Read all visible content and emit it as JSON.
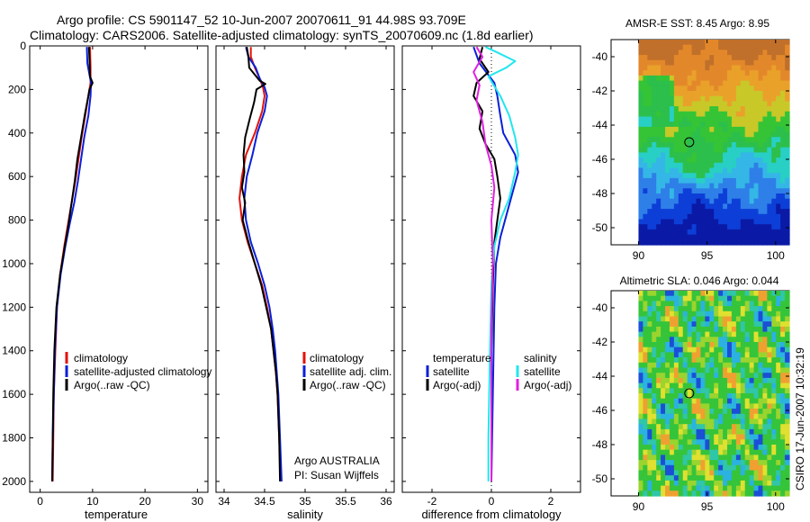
{
  "header": {
    "line1": "Argo profile: CS 5901147_52 10-Jun-2007 20070611_91 44.98S 93.709E",
    "line2": "Climatology: CARS2006. Satellite-adjusted climatology: synTS_20070609.nc (1.8d earlier)"
  },
  "side_label": "CSIRO 17-Jun-2007 10:32:19",
  "colors": {
    "red": "#e3120b",
    "blue": "#0a1fd8",
    "black": "#000000",
    "cyan": "#22e6ee",
    "magenta": "#e020e0"
  },
  "chart_data": [
    {
      "type": "line",
      "id": "temperature",
      "xlabel": "temperature",
      "xlim": [
        -2,
        32
      ],
      "ylim": [
        2050,
        0
      ],
      "xticks": [
        0,
        10,
        20,
        30
      ],
      "yticks": [
        0,
        200,
        400,
        600,
        800,
        1000,
        1200,
        1400,
        1600,
        1800,
        2000
      ],
      "legend": [
        "climatology",
        "satellite-adjusted climatology",
        "Argo(..raw -QC)"
      ],
      "series": [
        {
          "name": "climatology",
          "color": "red",
          "points": [
            [
              9.5,
              5
            ],
            [
              9.6,
              100
            ],
            [
              9.6,
              170
            ],
            [
              9.2,
              230
            ],
            [
              8.6,
              320
            ],
            [
              7.9,
              420
            ],
            [
              7.3,
              520
            ],
            [
              6.7,
              620
            ],
            [
              6.0,
              720
            ],
            [
              5.3,
              820
            ],
            [
              4.6,
              920
            ],
            [
              3.8,
              1050
            ],
            [
              3.2,
              1200
            ],
            [
              2.9,
              1400
            ],
            [
              2.6,
              1600
            ],
            [
              2.5,
              1800
            ],
            [
              2.4,
              2000
            ]
          ]
        },
        {
          "name": "satellite-adjusted climatology",
          "color": "blue",
          "points": [
            [
              8.9,
              5
            ],
            [
              9.0,
              80
            ],
            [
              9.7,
              170
            ],
            [
              9.6,
              230
            ],
            [
              9.2,
              320
            ],
            [
              8.4,
              420
            ],
            [
              7.8,
              520
            ],
            [
              7.2,
              620
            ],
            [
              6.5,
              720
            ],
            [
              5.6,
              820
            ],
            [
              4.8,
              920
            ],
            [
              3.9,
              1050
            ],
            [
              3.2,
              1200
            ],
            [
              2.8,
              1400
            ],
            [
              2.6,
              1600
            ],
            [
              2.4,
              1800
            ],
            [
              2.3,
              2000
            ]
          ]
        },
        {
          "name": "Argo(..raw -QC)",
          "color": "black",
          "points": [
            [
              9.3,
              5
            ],
            [
              9.4,
              60
            ],
            [
              9.5,
              140
            ],
            [
              10.0,
              170
            ],
            [
              9.4,
              200
            ],
            [
              9.2,
              230
            ],
            [
              8.5,
              320
            ],
            [
              7.8,
              420
            ],
            [
              7.1,
              520
            ],
            [
              6.6,
              620
            ],
            [
              6.0,
              720
            ],
            [
              5.4,
              820
            ],
            [
              4.7,
              920
            ],
            [
              3.8,
              1050
            ],
            [
              3.1,
              1200
            ],
            [
              2.7,
              1400
            ],
            [
              2.5,
              1600
            ],
            [
              2.4,
              1800
            ],
            [
              2.3,
              2000
            ]
          ]
        }
      ]
    },
    {
      "type": "line",
      "id": "salinity",
      "xlabel": "salinity",
      "xlim": [
        33.9,
        36.1
      ],
      "ylim": [
        2050,
        0
      ],
      "xticks": [
        34,
        34.5,
        35,
        35.5,
        36
      ],
      "legend": [
        "climatology",
        "satellite adj. clim.",
        "Argo(..raw -QC)"
      ],
      "notes": [
        "Argo AUSTRALIA",
        "PI: Susan Wijffels"
      ],
      "series": [
        {
          "name": "climatology",
          "color": "red",
          "points": [
            [
              34.33,
              5
            ],
            [
              34.33,
              50
            ],
            [
              34.38,
              100
            ],
            [
              34.44,
              150
            ],
            [
              34.48,
              190
            ],
            [
              34.5,
              230
            ],
            [
              34.47,
              300
            ],
            [
              34.38,
              400
            ],
            [
              34.27,
              500
            ],
            [
              34.22,
              600
            ],
            [
              34.19,
              700
            ],
            [
              34.22,
              800
            ],
            [
              34.29,
              900
            ],
            [
              34.38,
              1000
            ],
            [
              34.47,
              1100
            ],
            [
              34.53,
              1200
            ],
            [
              34.58,
              1300
            ],
            [
              34.61,
              1400
            ],
            [
              34.64,
              1500
            ],
            [
              34.66,
              1600
            ],
            [
              34.68,
              1800
            ],
            [
              34.7,
              2000
            ]
          ]
        },
        {
          "name": "satellite adj. clim.",
          "color": "blue",
          "points": [
            [
              34.27,
              5
            ],
            [
              34.3,
              50
            ],
            [
              34.39,
              100
            ],
            [
              34.44,
              150
            ],
            [
              34.5,
              190
            ],
            [
              34.53,
              230
            ],
            [
              34.5,
              300
            ],
            [
              34.41,
              400
            ],
            [
              34.35,
              500
            ],
            [
              34.28,
              600
            ],
            [
              34.25,
              700
            ],
            [
              34.27,
              800
            ],
            [
              34.33,
              900
            ],
            [
              34.42,
              1000
            ],
            [
              34.5,
              1100
            ],
            [
              34.56,
              1200
            ],
            [
              34.6,
              1300
            ],
            [
              34.63,
              1400
            ],
            [
              34.65,
              1500
            ],
            [
              34.67,
              1600
            ],
            [
              34.69,
              1800
            ],
            [
              34.71,
              2000
            ]
          ]
        },
        {
          "name": "Argo(..raw -QC)",
          "color": "black",
          "points": [
            [
              34.28,
              5
            ],
            [
              34.3,
              50
            ],
            [
              34.31,
              100
            ],
            [
              34.44,
              160
            ],
            [
              34.51,
              175
            ],
            [
              34.4,
              200
            ],
            [
              34.37,
              260
            ],
            [
              34.32,
              330
            ],
            [
              34.26,
              420
            ],
            [
              34.24,
              500
            ],
            [
              34.25,
              580
            ],
            [
              34.22,
              650
            ],
            [
              34.26,
              720
            ],
            [
              34.23,
              800
            ],
            [
              34.3,
              900
            ],
            [
              34.38,
              1000
            ],
            [
              34.46,
              1100
            ],
            [
              34.52,
              1200
            ],
            [
              34.58,
              1300
            ],
            [
              34.61,
              1400
            ],
            [
              34.64,
              1500
            ],
            [
              34.66,
              1600
            ],
            [
              34.68,
              1800
            ],
            [
              34.69,
              2000
            ]
          ]
        }
      ]
    },
    {
      "type": "line",
      "id": "difference",
      "xlabel": "difference from climatology",
      "xlim": [
        -3,
        3
      ],
      "ylim": [
        2050,
        0
      ],
      "xticks": [
        -2,
        0,
        2
      ],
      "legend": {
        "temperature_title": "temperature",
        "salinity_title": "salinity",
        "items": [
          "satellite",
          "Argo(-adj)",
          "satellite",
          "Argo(-adj)"
        ]
      },
      "series": [
        {
          "name": "satellite",
          "group": "temperature",
          "color": "blue",
          "points": [
            [
              -0.6,
              5
            ],
            [
              -0.4,
              80
            ],
            [
              0.1,
              170
            ],
            [
              0.2,
              230
            ],
            [
              0.3,
              320
            ],
            [
              0.4,
              400
            ],
            [
              0.8,
              500
            ],
            [
              0.9,
              580
            ],
            [
              0.7,
              680
            ],
            [
              0.5,
              780
            ],
            [
              0.3,
              880
            ],
            [
              0.15,
              1000
            ],
            [
              0.1,
              1200
            ],
            [
              0.05,
              1600
            ],
            [
              0.0,
              2000
            ]
          ]
        },
        {
          "name": "Argo(-adj)",
          "group": "temperature",
          "color": "black",
          "points": [
            [
              -0.3,
              5
            ],
            [
              -0.4,
              60
            ],
            [
              -0.1,
              120
            ],
            [
              -0.5,
              170
            ],
            [
              -0.6,
              230
            ],
            [
              -0.3,
              300
            ],
            [
              -0.4,
              380
            ],
            [
              -0.2,
              450
            ],
            [
              0.1,
              520
            ],
            [
              0.2,
              600
            ],
            [
              0.3,
              700
            ],
            [
              0.2,
              800
            ],
            [
              0.1,
              900
            ],
            [
              0.05,
              1100
            ],
            [
              0.0,
              1400
            ],
            [
              0.0,
              2000
            ]
          ]
        },
        {
          "name": "satellite",
          "group": "salinity",
          "color": "cyan",
          "points": [
            [
              -0.2,
              5
            ],
            [
              0.2,
              30
            ],
            [
              0.8,
              70
            ],
            [
              0.5,
              100
            ],
            [
              -0.1,
              140
            ],
            [
              0.3,
              230
            ],
            [
              0.6,
              320
            ],
            [
              0.8,
              420
            ],
            [
              0.9,
              500
            ],
            [
              0.8,
              580
            ],
            [
              0.6,
              700
            ],
            [
              0.3,
              800
            ],
            [
              0.1,
              920
            ],
            [
              0.0,
              1100
            ],
            [
              -0.05,
              1400
            ],
            [
              -0.1,
              1800
            ],
            [
              -0.1,
              2000
            ]
          ]
        },
        {
          "name": "Argo(-adj)",
          "group": "salinity",
          "color": "magenta",
          "points": [
            [
              -0.5,
              5
            ],
            [
              -0.3,
              50
            ],
            [
              -0.6,
              120
            ],
            [
              -0.4,
              180
            ],
            [
              -0.5,
              250
            ],
            [
              -0.3,
              350
            ],
            [
              -0.2,
              450
            ],
            [
              0.0,
              550
            ],
            [
              0.1,
              650
            ],
            [
              0.0,
              800
            ],
            [
              0.05,
              1000
            ],
            [
              0.0,
              1300
            ],
            [
              0.0,
              2000
            ]
          ]
        }
      ]
    },
    {
      "type": "heatmap",
      "id": "sst-map",
      "title": "AMSR-E SST: 8.45 Argo: 8.95",
      "xlim": [
        88,
        101
      ],
      "ylim": [
        -51,
        -39
      ],
      "xticks": [
        90,
        95,
        100
      ],
      "yticks": [
        -50,
        -48,
        -46,
        -44,
        -42,
        -40
      ],
      "data_extent": {
        "lon": [
          90,
          101
        ],
        "lat": [
          -51,
          -39
        ]
      },
      "argo_marker": {
        "lon": 93.7,
        "lat": -45.0
      }
    },
    {
      "type": "heatmap",
      "id": "sla-map",
      "title": "Altimetric SLA: 0.046 Argo: 0.044",
      "xlim": [
        88,
        101
      ],
      "ylim": [
        -51,
        -39
      ],
      "xticks": [
        90,
        95,
        100
      ],
      "yticks": [
        -50,
        -48,
        -46,
        -44,
        -42,
        -40
      ],
      "data_extent": {
        "lon": [
          90,
          101
        ],
        "lat": [
          -51,
          -39
        ]
      },
      "argo_marker": {
        "lon": 93.7,
        "lat": -45.0
      }
    }
  ]
}
